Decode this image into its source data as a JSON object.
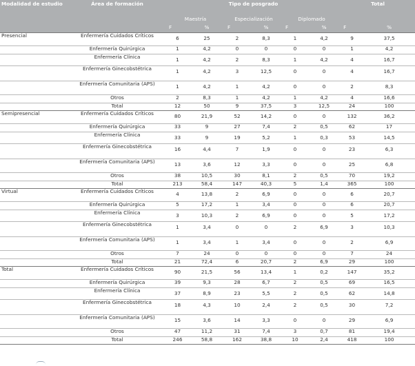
{
  "header": {
    "modalidad": "Modalidad de estudio",
    "area": "Área de formación",
    "tipo": "Tipo de posgrado",
    "total": "Total",
    "maestria": "Maestría",
    "especializacion": "Especialización",
    "diplomado": "Diplomado",
    "f": "F",
    "pct": "%"
  },
  "groups": [
    {
      "name": "Presencial",
      "rows": [
        {
          "area": "Enfermería Cuidados Críticos",
          "cells": [
            "6",
            "25",
            "2",
            "8,3",
            "1",
            "4,2",
            "9",
            "37,5"
          ]
        },
        {
          "area": "Enfermería Quirúrgica",
          "cells": [
            "1",
            "4,2",
            "0",
            "0",
            "0",
            "0",
            "1",
            "4,2"
          ]
        },
        {
          "area": "Enfermería Clínica",
          "cells": [
            "1",
            "4,2",
            "2",
            "8,3",
            "1",
            "4,2",
            "4",
            "16,7"
          ]
        },
        {
          "area": "Enfermería Ginecobstétrica",
          "cells": [
            "1",
            "4,2",
            "3",
            "12,5",
            "0",
            "0",
            "4",
            "16,7"
          ]
        },
        {
          "area": "Enfermería Comunitaria (APS)",
          "cells": [
            "1",
            "4,2",
            "1",
            "4,2",
            "0",
            "0",
            "2",
            "8,3"
          ]
        },
        {
          "area": "Otros",
          "cells": [
            "2",
            "8,3",
            "1",
            "4,2",
            "1",
            "4,2",
            "4",
            "16,6"
          ]
        },
        {
          "area": "Total",
          "cells": [
            "12",
            "50",
            "9",
            "37,5",
            "3",
            "12,5",
            "24",
            "100"
          ]
        }
      ]
    },
    {
      "name": "Semipresencial",
      "rows": [
        {
          "area": "Enfermería Cuidados Críticos",
          "cells": [
            "80",
            "21,9",
            "52",
            "14,2",
            "0",
            "0",
            "132",
            "36,2"
          ]
        },
        {
          "area": "Enfermería Quirúrgica",
          "cells": [
            "33",
            "9",
            "27",
            "7,4",
            "2",
            "0,5",
            "62",
            "17"
          ]
        },
        {
          "area": "Enfermería Clínica",
          "cells": [
            "33",
            "9",
            "19",
            "5,2",
            "1",
            "0,3",
            "53",
            "14,5"
          ]
        },
        {
          "area": "Enfermería Ginecobstétrica",
          "cells": [
            "16",
            "4,4",
            "7",
            "1,9",
            "0",
            "0",
            "23",
            "6,3"
          ]
        },
        {
          "area": "Enfermería Comunitaria (APS)",
          "cells": [
            "13",
            "3,6",
            "12",
            "3,3",
            "0",
            "0",
            "25",
            "6,8"
          ]
        },
        {
          "area": "Otros",
          "cells": [
            "38",
            "10,5",
            "30",
            "8,1",
            "2",
            "0,5",
            "70",
            "19,2"
          ]
        },
        {
          "area": "Total",
          "cells": [
            "213",
            "58,4",
            "147",
            "40,3",
            "5",
            "1,4",
            "365",
            "100"
          ]
        }
      ]
    },
    {
      "name": "Virtual",
      "rows": [
        {
          "area": "Enfermería Cuidados Críticos",
          "cells": [
            "4",
            "13,8",
            "2",
            "6,9",
            "0",
            "0",
            "6",
            "20,7"
          ]
        },
        {
          "area": "Enfermería Quirúrgica",
          "cells": [
            "5",
            "17,2",
            "1",
            "3,4",
            "0",
            "0",
            "6",
            "20,7"
          ]
        },
        {
          "area": "Enfermería Clínica",
          "cells": [
            "3",
            "10,3",
            "2",
            "6,9",
            "0",
            "0",
            "5",
            "17,2"
          ]
        },
        {
          "area": "Enfermería Ginecobstétrica",
          "cells": [
            "1",
            "3,4",
            "0",
            "0",
            "2",
            "6,9",
            "3",
            "10,3"
          ]
        },
        {
          "area": "Enfermería Comunitaria (APS)",
          "cells": [
            "1",
            "3,4",
            "1",
            "3,4",
            "0",
            "0",
            "2",
            "6,9"
          ]
        },
        {
          "area": "Otros",
          "cells": [
            "7",
            "24",
            "0",
            "0",
            "0",
            "0",
            "7",
            "24"
          ]
        },
        {
          "area": "Total",
          "cells": [
            "21",
            "72,4",
            "6",
            "20,7",
            "2",
            "6,9",
            "29",
            "100"
          ]
        }
      ]
    },
    {
      "name": "Total",
      "rows": [
        {
          "area": "Enfermería Cuidados Críticos",
          "cells": [
            "90",
            "21,5",
            "56",
            "13,4",
            "1",
            "0,2",
            "147",
            "35,2"
          ]
        },
        {
          "area": "Enfermería Quirúrgica",
          "cells": [
            "39",
            "9,3",
            "28",
            "6,7",
            "2",
            "0,5",
            "69",
            "16,5"
          ]
        },
        {
          "area": "Enfermería Clínica",
          "cells": [
            "37",
            "8,9",
            "23",
            "5,5",
            "2",
            "0,5",
            "62",
            "14,8"
          ]
        },
        {
          "area": "Enfermería Ginecobstétrica",
          "cells": [
            "18",
            "4,3",
            "10",
            "2,4",
            "2",
            "0,5",
            "30",
            "7,2"
          ]
        },
        {
          "area": "Enfermería Comunitaria (APS)",
          "cells": [
            "15",
            "3,6",
            "14",
            "3,3",
            "0",
            "0",
            "29",
            "6,9"
          ]
        },
        {
          "area": "Otros",
          "cells": [
            "47",
            "11,2",
            "31",
            "7,4",
            "3",
            "0,7",
            "81",
            "19,4"
          ]
        },
        {
          "area": "Total",
          "cells": [
            "246",
            "58,8",
            "162",
            "38,8",
            "10",
            "2,4",
            "418",
            "100"
          ]
        }
      ]
    }
  ]
}
